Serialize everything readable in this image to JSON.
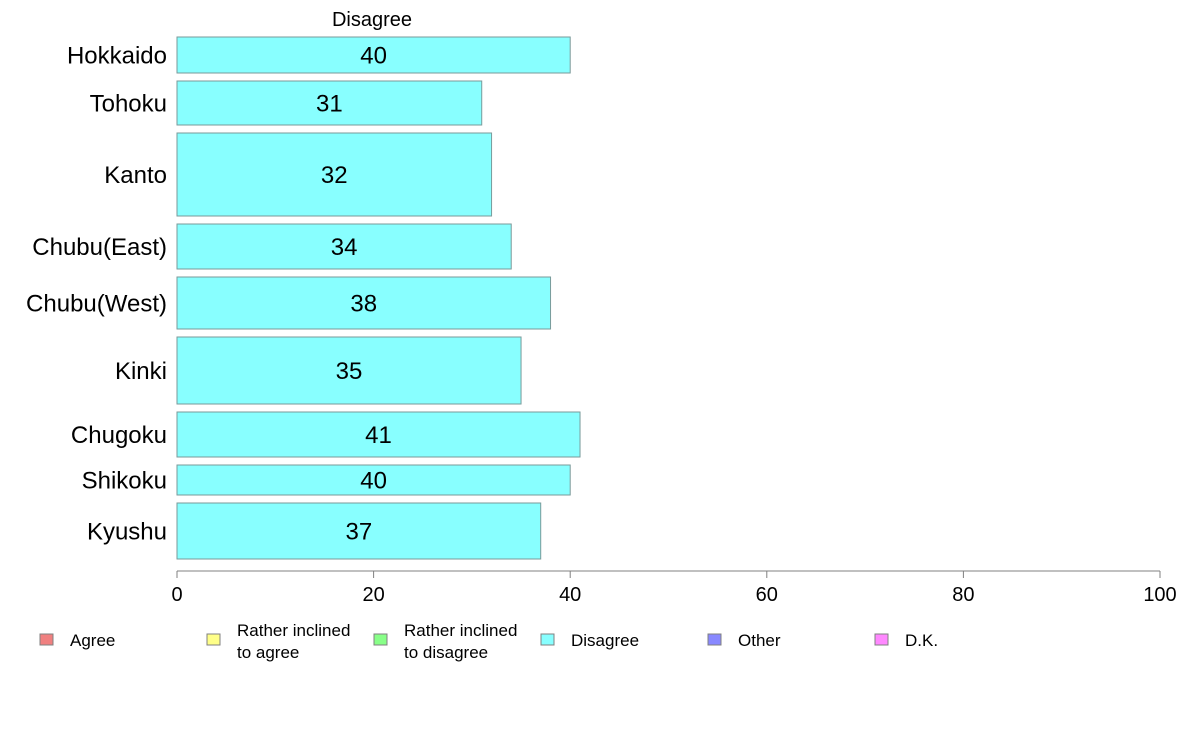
{
  "chart_data": {
    "type": "bar",
    "orientation": "horizontal",
    "title": "",
    "header": "Disagree",
    "xlabel": "",
    "ylabel": "",
    "categories": [
      "Hokkaido",
      "Tohoku",
      "Kanto",
      "Chubu(East)",
      "Chubu(West)",
      "Kinki",
      "Chugoku",
      "Shikoku",
      "Kyushu"
    ],
    "series": [
      {
        "name": "Disagree",
        "color": "#88ffff",
        "values": [
          40,
          31,
          32,
          34,
          38,
          35,
          41,
          40,
          37
        ]
      }
    ],
    "xlim": [
      0,
      100
    ],
    "xticks": [
      0,
      20,
      40,
      60,
      80,
      100
    ],
    "grid": false,
    "legend_position": "bottom",
    "legend": [
      {
        "lines": [
          "Agree"
        ],
        "color": "#f08080"
      },
      {
        "lines": [
          "Rather inclined",
          "to agree"
        ],
        "color": "#ffff88"
      },
      {
        "lines": [
          "Rather inclined",
          "to disagree"
        ],
        "color": "#88ff88"
      },
      {
        "lines": [
          "Disagree"
        ],
        "color": "#88ffff"
      },
      {
        "lines": [
          "Other"
        ],
        "color": "#8888ff"
      },
      {
        "lines": [
          "D.K."
        ],
        "color": "#ff88ff"
      }
    ]
  }
}
